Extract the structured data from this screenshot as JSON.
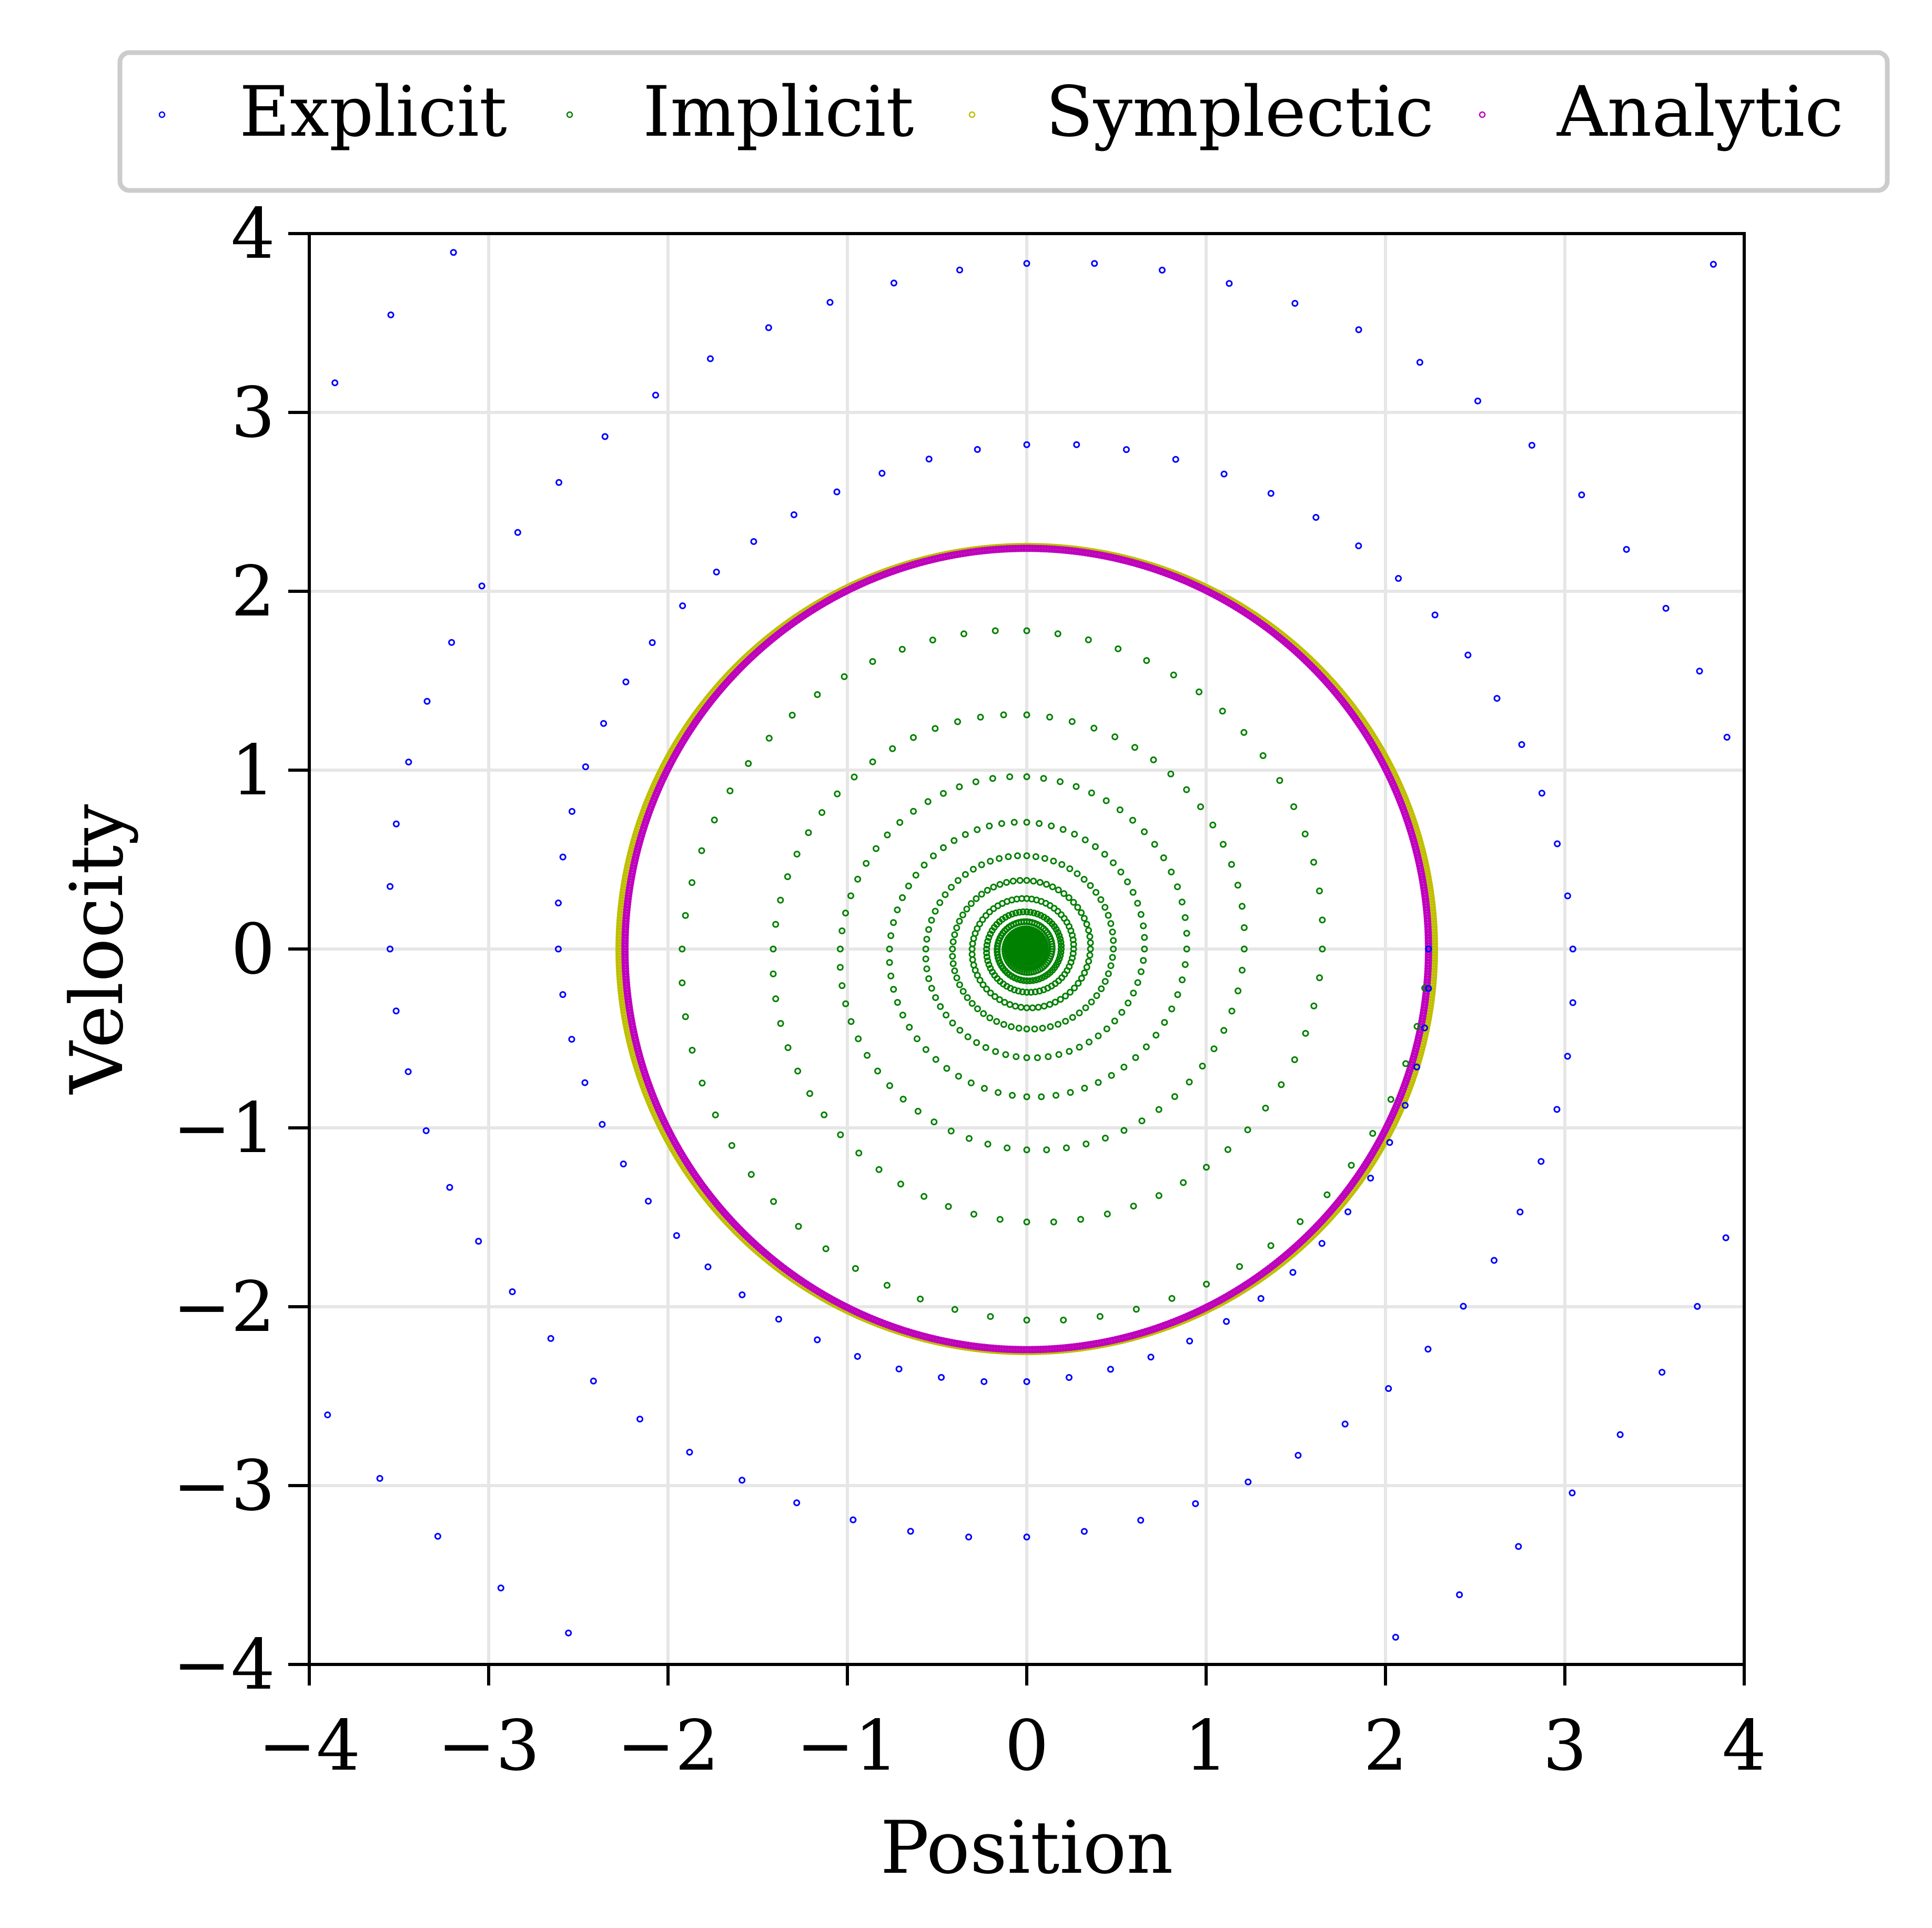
{
  "chart_data": {
    "type": "scatter",
    "title": "",
    "xlabel": "Position",
    "ylabel": "Velocity",
    "xlim": [
      -4,
      4
    ],
    "ylim": [
      -4,
      4
    ],
    "xticks": [
      -4,
      -3,
      -2,
      -1,
      0,
      1,
      2,
      3,
      4
    ],
    "yticks": [
      -4,
      -3,
      -2,
      -1,
      0,
      1,
      2,
      3,
      4
    ],
    "xtick_labels": [
      "−4",
      "−3",
      "−2",
      "−1",
      "0",
      "1",
      "2",
      "3",
      "4"
    ],
    "ytick_labels": [
      "−4",
      "−3",
      "−2",
      "−1",
      "0",
      "1",
      "2",
      "3",
      "4"
    ],
    "grid": true,
    "legend_placement": "top, above plot, single row",
    "series": [
      {
        "name": "Explicit",
        "color": "#0000ff",
        "marker": "open-circle",
        "description": "outward spiral",
        "rings_at_x0_top": [
          2.6,
          3.03,
          3.55
        ],
        "rings_at_x0_bottom": [
          -2.38,
          -2.78,
          -3.27,
          -3.83
        ],
        "start_radius": 2.24,
        "points_per_turn": 64,
        "turns": 6
      },
      {
        "name": "Implicit",
        "color": "#008000",
        "marker": "open-circle",
        "description": "inward spiral",
        "rings_at_x0_top": [
          1.93,
          1.65,
          1.42,
          1.2,
          1.03,
          0.88,
          0.75,
          0.65,
          0.57,
          0.5
        ],
        "start_radius": 2.24,
        "points_per_turn": 64,
        "turns": 30
      },
      {
        "name": "Symplectic",
        "color": "#bfbf00",
        "marker": "open-circle",
        "description": "closed orbit, slightly tilted ellipse",
        "radius": 2.27
      },
      {
        "name": "Analytic",
        "color": "#bf00bf",
        "marker": "open-circle",
        "description": "closed circle",
        "radius": 2.24
      }
    ]
  }
}
